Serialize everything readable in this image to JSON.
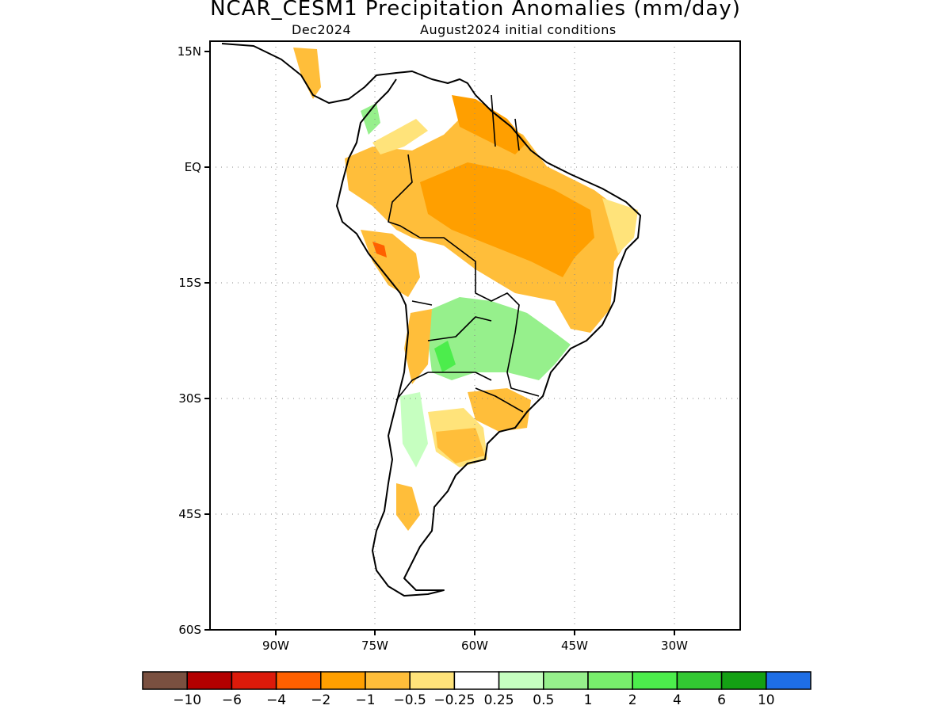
{
  "title": "NCAR_CESM1 Precipitation Anomalies (mm/day)",
  "subtitle_left": "Dec2024",
  "subtitle_right": "August2024 initial conditions",
  "map": {
    "region": "South America",
    "lat_range": [
      -60,
      15
    ],
    "lon_range": [
      -98,
      -29
    ],
    "lat_ticks": [
      "15N",
      "EQ",
      "15S",
      "30S",
      "45S",
      "60S"
    ],
    "lon_ticks": [
      "90W",
      "75W",
      "60W",
      "45W",
      "30W"
    ],
    "grid": "dotted"
  },
  "colorbar": {
    "colors": [
      "#7a5040",
      "#b30000",
      "#dc1a0a",
      "#ff6000",
      "#ff9f00",
      "#ffbe3a",
      "#ffe37a",
      "#ffffff",
      "#c6ffc0",
      "#96f08c",
      "#78ee6c",
      "#4ced4c",
      "#32c832",
      "#14a014",
      "#1e6ee6"
    ],
    "labels": [
      "-10",
      "-6",
      "-4",
      "-2",
      "-1",
      "-0.5",
      "-0.25",
      "0.25",
      "0.5",
      "1",
      "2",
      "4",
      "6",
      "10"
    ]
  }
}
